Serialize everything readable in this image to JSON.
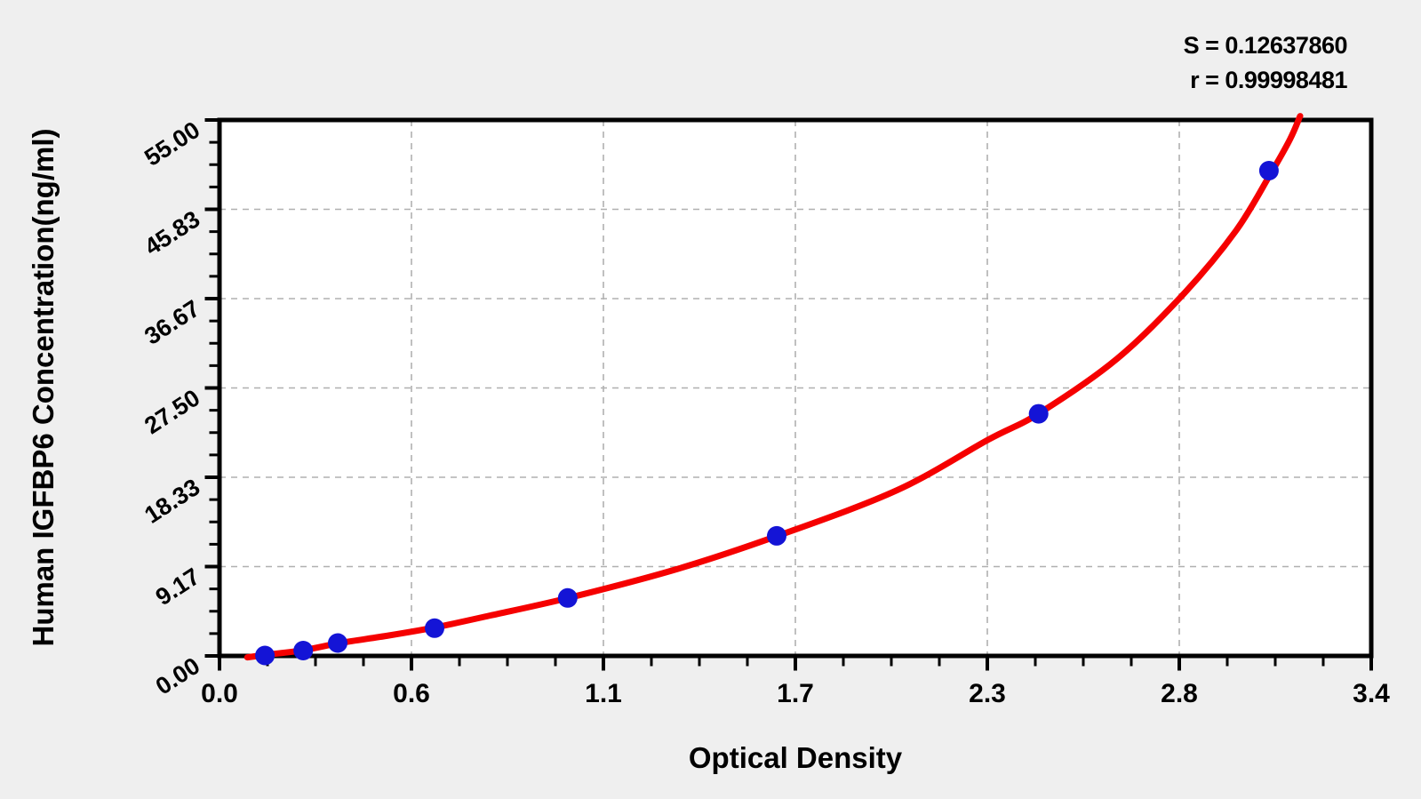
{
  "chart_data": {
    "type": "scatter",
    "title": "",
    "xlabel": "Optical Density",
    "ylabel": "Human IGFBP6 Concentration(ng/ml)",
    "xlim": [
      0,
      3.4
    ],
    "ylim": [
      0,
      55
    ],
    "x_tick_labels": [
      "0.0",
      "0.6",
      "1.1",
      "1.7",
      "2.3",
      "2.8",
      "3.4"
    ],
    "y_tick_labels": [
      "0.00",
      "9.17",
      "18.33",
      "27.50",
      "36.67",
      "45.83",
      "55.00"
    ],
    "minor_tick_divisions": 4,
    "grid": "dashed gray lines at major ticks, plot framed on all four sides",
    "stats": {
      "s_text": "S = 0.12637860",
      "r_text": "r = 0.99998481"
    },
    "series": [
      {
        "name": "standard-points",
        "type": "scatter",
        "color": "#1414d6",
        "points": [
          {
            "od": 0.134,
            "conc": 0.05
          },
          {
            "od": 0.247,
            "conc": 0.55
          },
          {
            "od": 0.349,
            "conc": 1.32
          },
          {
            "od": 0.635,
            "conc": 2.85
          },
          {
            "od": 1.028,
            "conc": 5.95
          },
          {
            "od": 1.645,
            "conc": 12.32
          },
          {
            "od": 2.418,
            "conc": 24.85
          },
          {
            "od": 3.098,
            "conc": 49.8
          }
        ]
      },
      {
        "name": "fitted-curve",
        "type": "line",
        "color": "#f50000",
        "points": [
          [
            0.082,
            -0.15
          ],
          [
            0.134,
            0.1
          ],
          [
            0.25,
            0.6
          ],
          [
            0.36,
            1.35
          ],
          [
            0.5,
            2.1
          ],
          [
            0.64,
            2.95
          ],
          [
            0.8,
            4.15
          ],
          [
            1.03,
            5.95
          ],
          [
            1.35,
            8.9
          ],
          [
            1.65,
            12.35
          ],
          [
            2.0,
            17.0
          ],
          [
            2.27,
            22.2
          ],
          [
            2.42,
            24.9
          ],
          [
            2.65,
            30.5
          ],
          [
            2.85,
            37.3
          ],
          [
            3.0,
            43.6
          ],
          [
            3.1,
            49.3
          ],
          [
            3.16,
            53.0
          ],
          [
            3.19,
            55.4
          ]
        ]
      }
    ],
    "colors": {
      "page_bg": "#efefef",
      "plot_bg": "#ffffff",
      "frame": "#000000",
      "grid": "#b0b0b0",
      "curve": "#f50000",
      "marker": "#1414d6"
    },
    "legend": "none"
  }
}
